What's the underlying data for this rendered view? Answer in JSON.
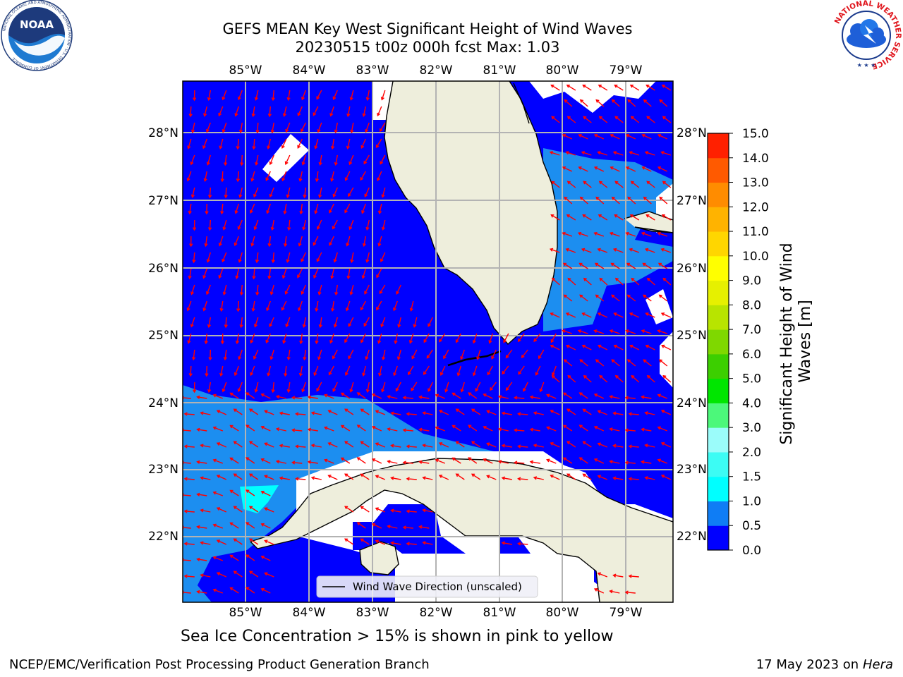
{
  "header": {
    "title_line1": "GEFS MEAN Key West Significant Height of Wind Waves",
    "title_line2": "20230515 t00z 000h fcst   Max: 1.03"
  },
  "logos": {
    "noaa_text": "NOAA",
    "noaa_ring_text": "NATIONAL OCEANIC AND ATMOSPHERIC ADMINISTRATION · U.S. DEPARTMENT OF COMMERCE",
    "nws_ring_text": "NATIONAL WEATHER SERVICE"
  },
  "map": {
    "lon_labels": [
      "85°W",
      "84°W",
      "83°W",
      "82°W",
      "81°W",
      "80°W",
      "79°W"
    ],
    "lat_labels": [
      "28°N",
      "27°N",
      "26°N",
      "25°N",
      "24°N",
      "23°N",
      "22°N"
    ],
    "legend_label": "Wind Wave Direction (unscaled)",
    "colors": {
      "land": "#eeeedc",
      "ocean_low": "#0000ff",
      "ocean_mid": "#1c8ef0",
      "ocean_high": "#00ffff",
      "arrow": "#ff0000"
    }
  },
  "colorbar": {
    "label": "Significant Height of Wind Waves [m]",
    "ticks": [
      "0.0",
      "0.5",
      "1.0",
      "1.5",
      "2.0",
      "3.0",
      "4.0",
      "5.0",
      "6.0",
      "7.0",
      "8.0",
      "9.0",
      "10.0",
      "11.0",
      "12.0",
      "13.0",
      "14.0",
      "15.0"
    ],
    "colors": [
      "#0000ff",
      "#0f7df5",
      "#00ffff",
      "#3cfcf4",
      "#9bfcfa",
      "#4cf87a",
      "#00e600",
      "#3ccf00",
      "#7fd800",
      "#b8e400",
      "#e6f000",
      "#ffff00",
      "#ffd600",
      "#ffb300",
      "#ff8c00",
      "#ff5a00",
      "#ff2000"
    ]
  },
  "footer": {
    "note": "Sea Ice Concentration > 15% is shown in pink to yellow",
    "left": "NCEP/EMC/Verification Post Processing Product Generation Branch",
    "date": "17 May 2023 on",
    "machine": "Hera"
  }
}
